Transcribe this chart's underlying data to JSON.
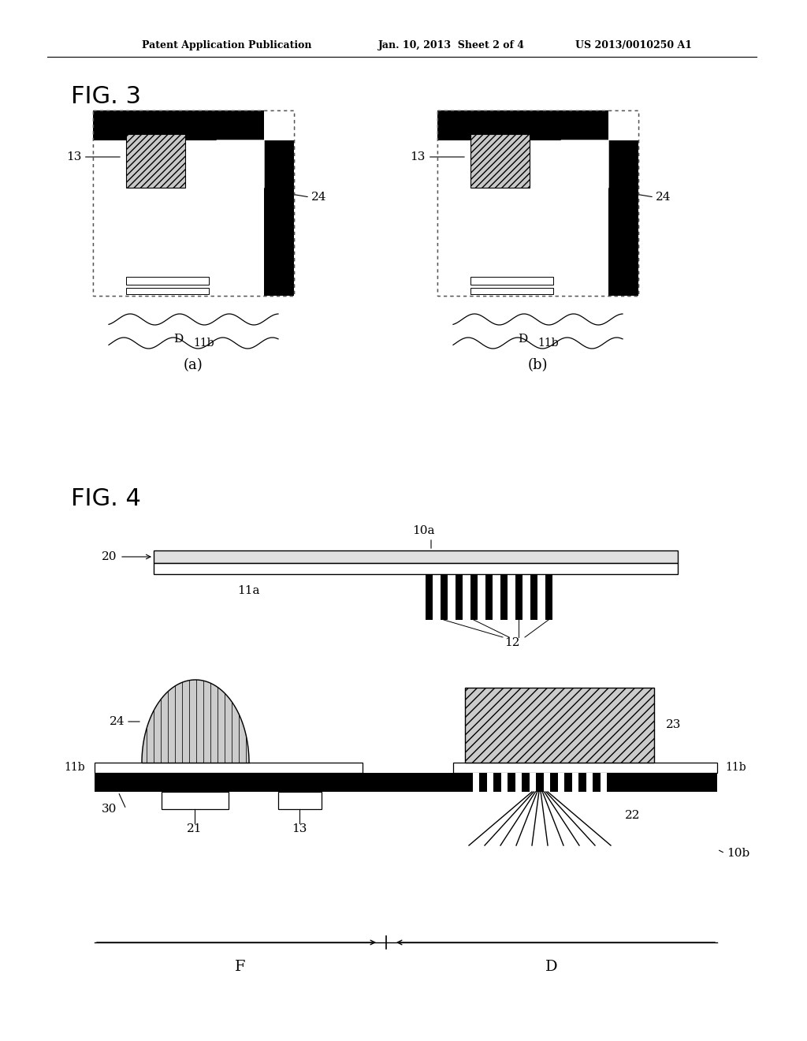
{
  "bg_color": "#ffffff",
  "header_text1": "Patent Application Publication",
  "header_text2": "Jan. 10, 2013  Sheet 2 of 4",
  "header_text3": "US 2013/0010250 A1",
  "fig3_label": "FIG. 3",
  "fig4_label": "FIG. 4",
  "sub_a": "(a)",
  "sub_b": "(b)"
}
